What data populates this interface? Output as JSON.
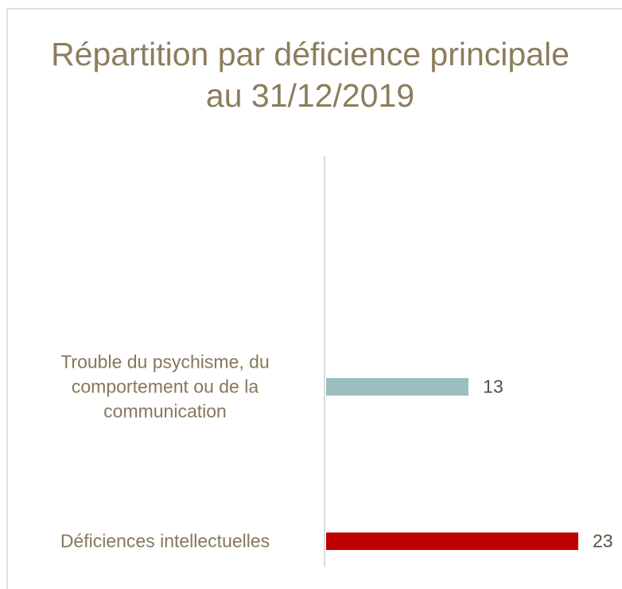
{
  "chart_data": {
    "type": "bar",
    "orientation": "horizontal",
    "title": "Répartition par déficience principale au 31/12/2019",
    "categories": [
      "Trouble du psychisme, du comportement ou de la communication",
      "Déficiences intellectuelles"
    ],
    "values": [
      13,
      23
    ],
    "colors": [
      "#9dbfbf",
      "#c00000"
    ]
  }
}
